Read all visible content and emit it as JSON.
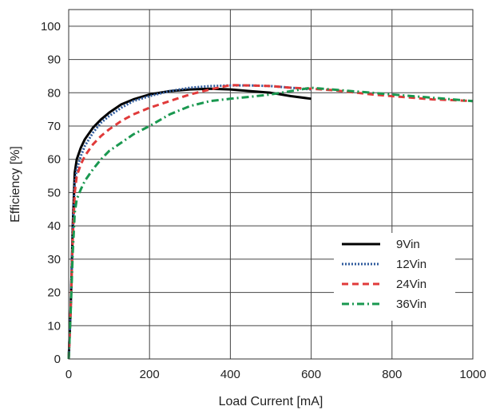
{
  "chart_data": {
    "type": "line",
    "title": "",
    "xlabel": "Load Current [mA]",
    "ylabel": "Efficiency [%]",
    "xlim": [
      0,
      1000
    ],
    "ylim": [
      0,
      105
    ],
    "x_ticks": [
      0,
      200,
      400,
      600,
      800,
      1000
    ],
    "x_tick_labels": [
      "0",
      "200",
      "400",
      "600",
      "800",
      "1000"
    ],
    "y_ticks": [
      0,
      10,
      20,
      30,
      40,
      50,
      60,
      70,
      80,
      90,
      100
    ],
    "y_tick_labels": [
      "0",
      "10",
      "20",
      "30",
      "40",
      "50",
      "60",
      "70",
      "80",
      "90",
      "100"
    ],
    "grid": true,
    "legend_position": "right-center",
    "series": [
      {
        "name": "9Vin",
        "color": "#000000",
        "style": "solid",
        "points": [
          [
            0,
            0
          ],
          [
            5,
            15
          ],
          [
            10,
            40
          ],
          [
            15,
            56
          ],
          [
            20,
            60
          ],
          [
            30,
            63.5
          ],
          [
            40,
            66
          ],
          [
            60,
            69.5
          ],
          [
            80,
            72
          ],
          [
            100,
            74
          ],
          [
            130,
            76.5
          ],
          [
            160,
            78
          ],
          [
            200,
            79.5
          ],
          [
            250,
            80.5
          ],
          [
            300,
            81
          ],
          [
            350,
            81.2
          ],
          [
            400,
            81
          ],
          [
            450,
            80.5
          ],
          [
            500,
            80
          ],
          [
            550,
            79
          ],
          [
            600,
            78.2
          ]
        ]
      },
      {
        "name": "12Vin",
        "color": "#2f5b9e",
        "style": "dotted",
        "points": [
          [
            0,
            0
          ],
          [
            5,
            15
          ],
          [
            10,
            38
          ],
          [
            15,
            53
          ],
          [
            20,
            57
          ],
          [
            30,
            61
          ],
          [
            40,
            64
          ],
          [
            60,
            68
          ],
          [
            80,
            71
          ],
          [
            100,
            73
          ],
          [
            130,
            75.5
          ],
          [
            160,
            77.5
          ],
          [
            200,
            79
          ],
          [
            250,
            80.5
          ],
          [
            300,
            81.5
          ],
          [
            350,
            82
          ],
          [
            400,
            82.2
          ],
          [
            450,
            82.2
          ],
          [
            500,
            82
          ],
          [
            550,
            81.5
          ],
          [
            600,
            81
          ]
        ]
      },
      {
        "name": "24Vin",
        "color": "#e03a3a",
        "style": "dashed",
        "points": [
          [
            0,
            0
          ],
          [
            5,
            15
          ],
          [
            10,
            36
          ],
          [
            15,
            50
          ],
          [
            20,
            55
          ],
          [
            30,
            58.5
          ],
          [
            40,
            61
          ],
          [
            60,
            64.5
          ],
          [
            80,
            67
          ],
          [
            100,
            69
          ],
          [
            130,
            71.5
          ],
          [
            160,
            73.5
          ],
          [
            200,
            75.5
          ],
          [
            250,
            77.5
          ],
          [
            300,
            79.5
          ],
          [
            350,
            81
          ],
          [
            400,
            82.3
          ],
          [
            450,
            82.2
          ],
          [
            500,
            82
          ],
          [
            550,
            81.5
          ],
          [
            600,
            81.2
          ],
          [
            650,
            80.8
          ],
          [
            700,
            80.2
          ],
          [
            750,
            79.5
          ],
          [
            800,
            79
          ],
          [
            850,
            78.5
          ],
          [
            900,
            78
          ],
          [
            950,
            77.8
          ],
          [
            1000,
            77.5
          ]
        ]
      },
      {
        "name": "36Vin",
        "color": "#1a9850",
        "style": "dashdot",
        "points": [
          [
            0,
            0
          ],
          [
            5,
            14
          ],
          [
            10,
            32
          ],
          [
            15,
            44
          ],
          [
            20,
            48
          ],
          [
            30,
            51
          ],
          [
            40,
            53.5
          ],
          [
            60,
            57
          ],
          [
            80,
            60
          ],
          [
            100,
            62.5
          ],
          [
            130,
            65
          ],
          [
            160,
            67.5
          ],
          [
            200,
            70
          ],
          [
            250,
            73.5
          ],
          [
            300,
            76
          ],
          [
            350,
            77.5
          ],
          [
            400,
            78.2
          ],
          [
            450,
            78.8
          ],
          [
            500,
            79.5
          ],
          [
            550,
            80.5
          ],
          [
            600,
            81.5
          ],
          [
            650,
            81
          ],
          [
            700,
            80.5
          ],
          [
            750,
            80
          ],
          [
            800,
            79.5
          ],
          [
            850,
            79
          ],
          [
            900,
            78.5
          ],
          [
            950,
            78
          ],
          [
            1000,
            77.5
          ]
        ]
      }
    ]
  }
}
